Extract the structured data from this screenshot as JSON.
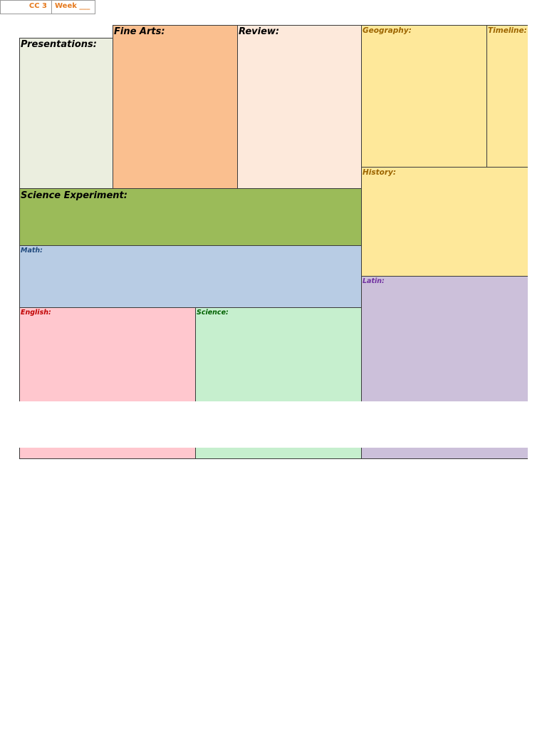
{
  "header": {
    "cc": "CC 3",
    "week": "Week ___"
  },
  "sections": {
    "presentations": "Presentations:",
    "fine_arts": "Fine Arts:",
    "review": "Review:",
    "geography": "Geography:",
    "timeline": "Timeline:",
    "history": "History:",
    "science_experiment": "Science Experiment:",
    "math": "Math:",
    "latin": "Latin:",
    "english": "English:",
    "science": "Science:"
  },
  "colors": {
    "presentations": "#ebeedf",
    "fine_arts": "#fabf8f",
    "review": "#fde9db",
    "geography": "#fee89a",
    "science_experiment": "#9bbb59",
    "math": "#b8cce4",
    "latin": "#ccc0da",
    "english": "#ffc7ce",
    "science": "#c6efce",
    "header_text": "#e57a1f"
  }
}
